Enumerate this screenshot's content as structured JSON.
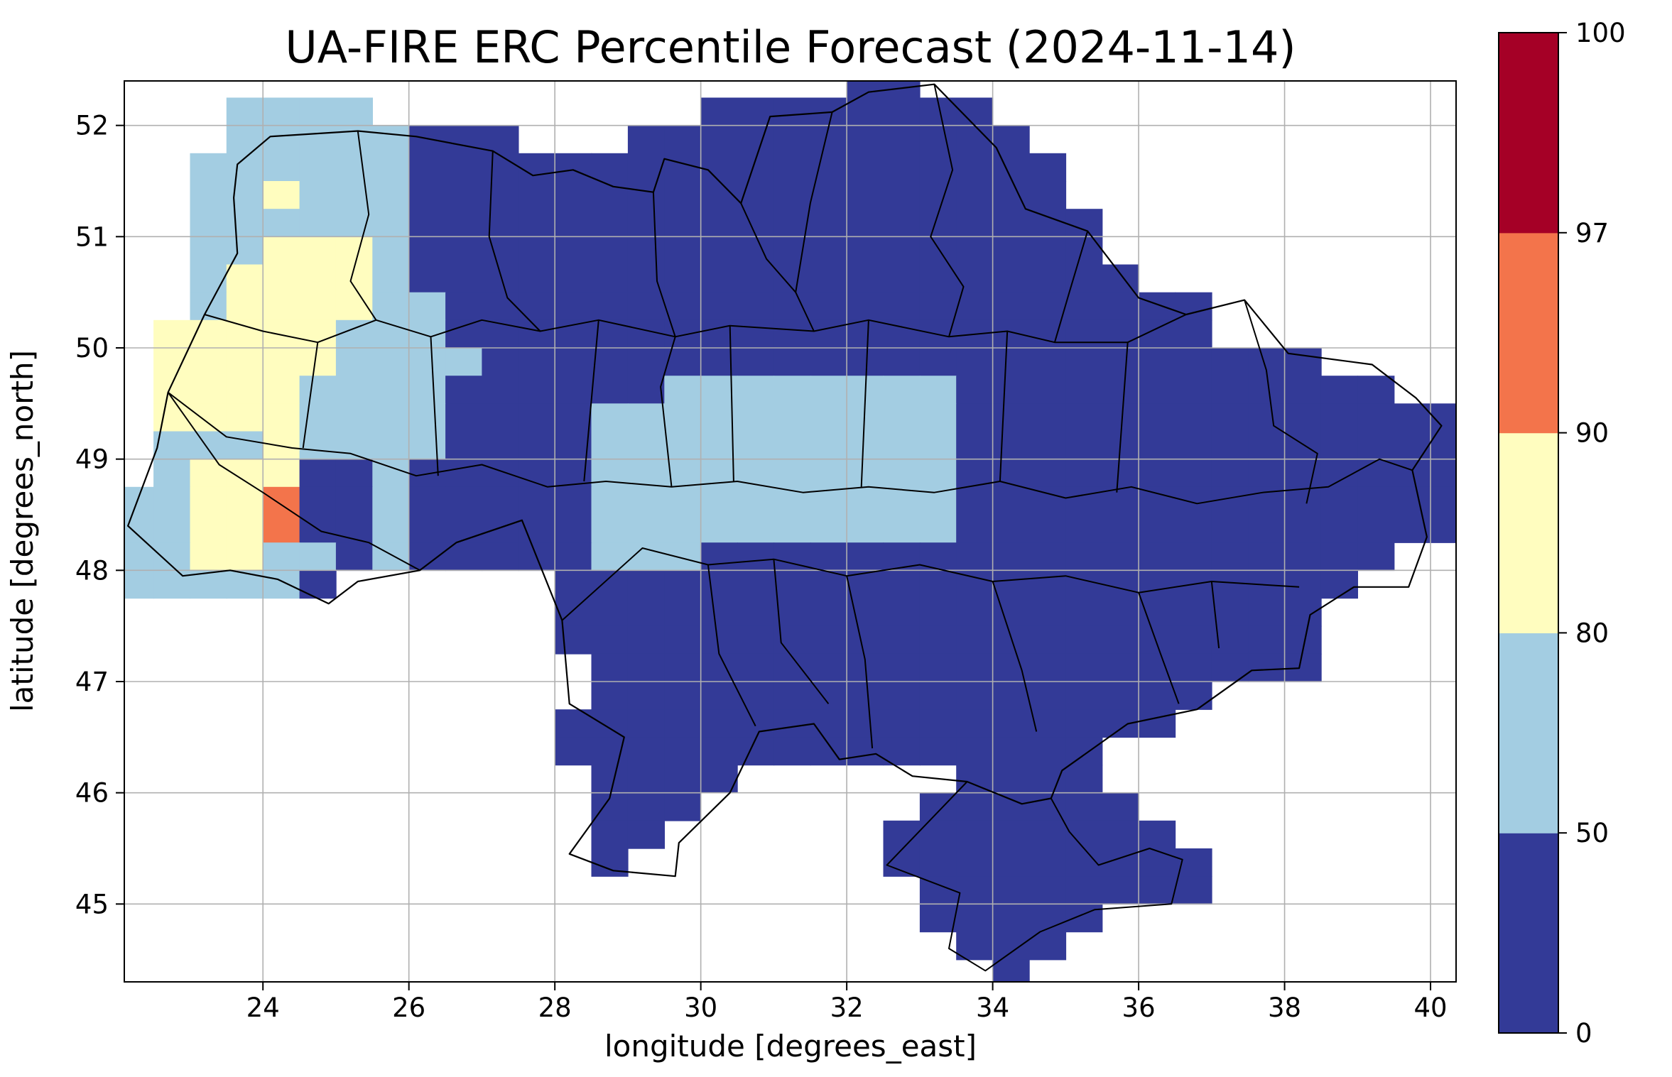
{
  "figure": {
    "kind": "geospatial percentile forecast map"
  },
  "chart_data": {
    "type": "heatmap",
    "title": "UA-FIRE ERC Percentile Forecast (2024-11-14)",
    "xlabel": "longitude [degrees_east]",
    "ylabel": "latitude [degrees_north]",
    "xlim": [
      22.1,
      40.35
    ],
    "ylim": [
      44.3,
      52.4
    ],
    "x_ticks": [
      24,
      26,
      28,
      30,
      32,
      34,
      36,
      38,
      40
    ],
    "y_ticks": [
      45,
      46,
      47,
      48,
      49,
      50,
      51,
      52
    ],
    "grid": true,
    "legend_position": "right-colorbar",
    "grid_origin": {
      "lon_min": 22.0,
      "lat_max": 52.5,
      "dlon": 0.5,
      "dlat": 0.25
    },
    "categories": {
      "1": {
        "range": "0-50",
        "color": "#333a97"
      },
      "2": {
        "range": "50-80",
        "color": "#a3cde2"
      },
      "3": {
        "range": "80-90",
        "color": "#fffdbf"
      },
      "4": {
        "range": "90-97",
        "color": "#f3744b"
      }
    },
    "raster_rows": [
      "....................11...............",
      "...2222.........11111111.............",
      "...22222111...11111111111............",
      "..222222111111111111111111...........",
      "..223222111111111111111111...........",
      "..2222221111111111111111111..........",
      "..2233321111111111111111111..........",
      "..23333211111111111111111111.........",
      "..2333322111111111111111111111.......",
      ".33333222111111111111111111111.......",
      ".33333222211111111111111111111111....",
      ".3333222211111122222222111111111111..",
      ".333322221111222222222211111111111111",
      ".222322221111222222222211111111111111",
      ".233311211111222222222211111111111111",
      "2233411211111222222222211111111111111",
      "2233411211111222222222211111111111111",
      "22332212111112221111111111111111111..",
      "222221......1111111111111111111111...",
      "............111111111111111111111....",
      "............111111111111111111111....",
      ".............11111111111111111111....",
      ".............11111111111111111.......",
      "............11111111111111111........",
      "............111111111111111..........",
      ".............1111......1111..........",
      ".............111......111111.........",
      ".............11......11111111........",
      ".............1.......111111111.......",
      "......................11111111.......",
      "......................11111..........",
      ".......................111...........",
      "........................1............"
    ],
    "colorbar": {
      "levels": [
        0,
        50,
        80,
        90,
        97,
        100
      ],
      "tick_labels": [
        "0",
        "50",
        "80",
        "90",
        "97",
        "100"
      ],
      "colors": [
        "#333a97",
        "#a3cde2",
        "#fffdbf",
        "#f3744b",
        "#a50026"
      ]
    }
  }
}
